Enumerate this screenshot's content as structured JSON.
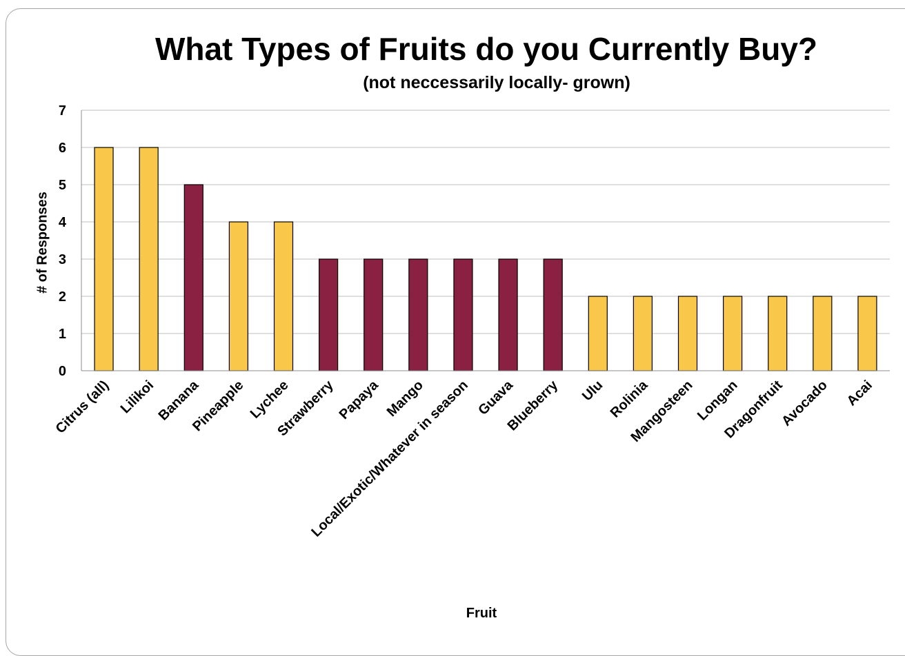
{
  "colors": {
    "yellow": "#F9C74A",
    "maroon": "#8B2142",
    "bar_border": "#000000",
    "gridline": "#BFBFBF"
  },
  "chart_data": {
    "type": "bar",
    "title": "What Types of Fruits do you Currently Buy?",
    "subtitle": "(not neccessarily locally- grown)",
    "xlabel": "Fruit",
    "ylabel": "# of Responses",
    "ylim": [
      0,
      7
    ],
    "yticks": [
      0,
      1,
      2,
      3,
      4,
      5,
      6,
      7
    ],
    "grid": true,
    "legend": "none",
    "categories": [
      "Citrus (all)",
      "Lilikoi",
      "Banana",
      "Pineapple",
      "Lychee",
      "Strawberry",
      "Papaya",
      "Mango",
      "Local/Exotic/Whatever in season",
      "Guava",
      "Blueberry",
      "Ulu",
      "Rolinia",
      "Mangosteen",
      "Longan",
      "Dragonfruit",
      "Avocado",
      "Acai"
    ],
    "values": [
      6,
      6,
      5,
      4,
      4,
      3,
      3,
      3,
      3,
      3,
      3,
      2,
      2,
      2,
      2,
      2,
      2,
      2
    ],
    "bar_colors": [
      "yellow",
      "yellow",
      "maroon",
      "yellow",
      "yellow",
      "maroon",
      "maroon",
      "maroon",
      "maroon",
      "maroon",
      "maroon",
      "yellow",
      "yellow",
      "yellow",
      "yellow",
      "yellow",
      "yellow",
      "yellow"
    ]
  }
}
